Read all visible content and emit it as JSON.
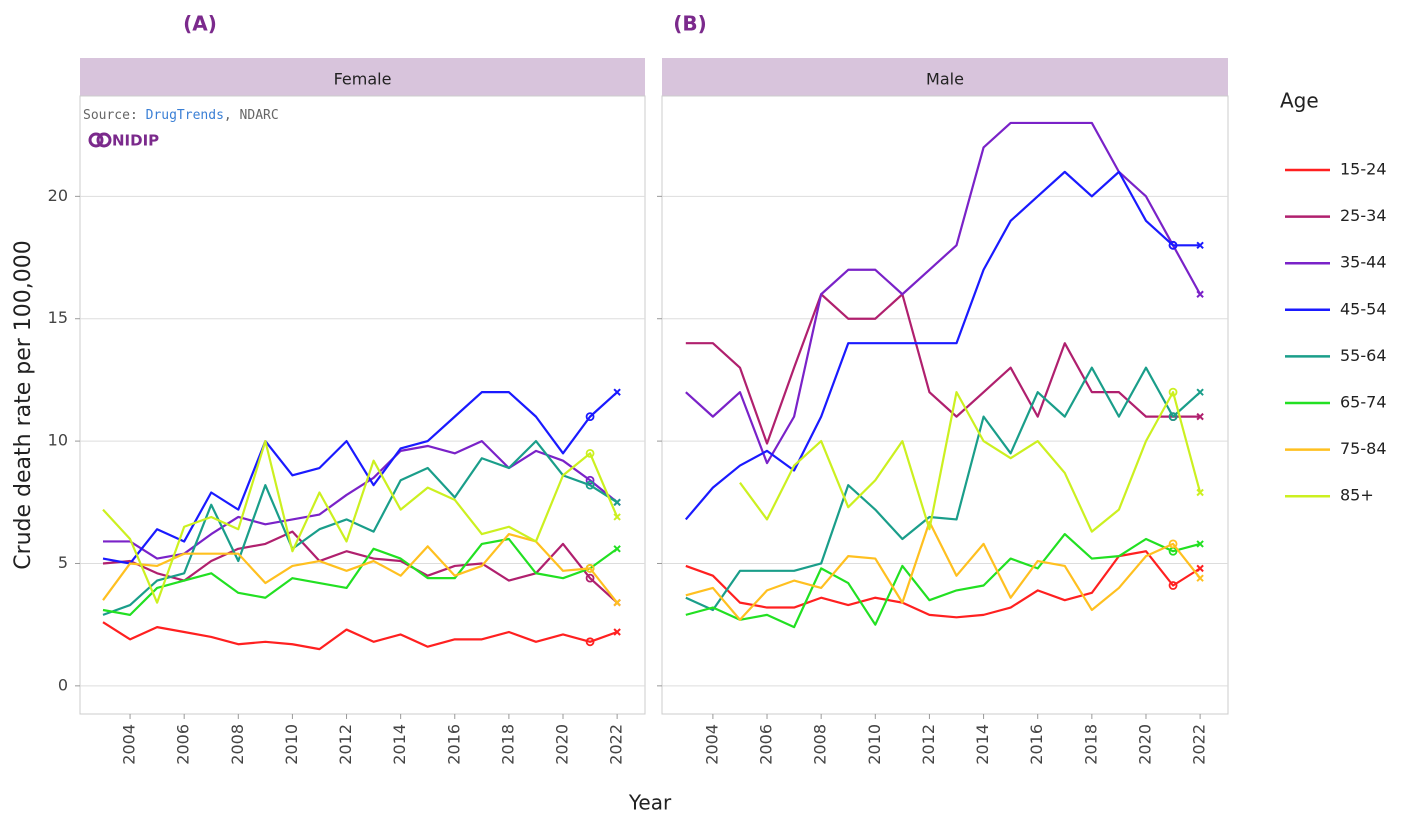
{
  "panel_labels": [
    "(A)",
    "(B)"
  ],
  "source": {
    "prefix": "Source:",
    "link": "DrugTrends",
    "suffix": ", NDARC"
  },
  "logo": "NIDIP",
  "legend_title": "Age",
  "xlabel": "Year",
  "ylabel": "Crude death rate per 100,000",
  "chart_data": [
    {
      "type": "line",
      "title": "Female",
      "x": [
        2003,
        2004,
        2005,
        2006,
        2007,
        2008,
        2009,
        2010,
        2011,
        2012,
        2013,
        2014,
        2015,
        2016,
        2017,
        2018,
        2019,
        2020,
        2021,
        2022
      ],
      "xlim": [
        2002.15,
        2023.03
      ],
      "xticks": [
        2004,
        2006,
        2008,
        2010,
        2012,
        2014,
        2016,
        2018,
        2020,
        2022
      ],
      "ylim": [
        -1.15,
        24.1
      ],
      "yticks": [
        0,
        5,
        10,
        15,
        20
      ],
      "grid": true,
      "series": [
        {
          "name": "15-24",
          "color": "#ff2020",
          "values": [
            2.6,
            1.9,
            2.4,
            2.2,
            2.0,
            1.7,
            1.8,
            1.7,
            1.5,
            2.3,
            1.8,
            2.1,
            1.6,
            1.9,
            1.9,
            2.2,
            1.8,
            2.1,
            1.8,
            2.2
          ]
        },
        {
          "name": "25-34",
          "color": "#b0206e",
          "values": [
            5.0,
            5.1,
            4.6,
            4.3,
            5.1,
            5.6,
            5.8,
            6.3,
            5.1,
            5.5,
            5.2,
            5.1,
            4.5,
            4.9,
            5.0,
            4.3,
            4.6,
            5.8,
            4.4,
            3.4
          ]
        },
        {
          "name": "35-44",
          "color": "#7a22c8",
          "values": [
            5.9,
            5.9,
            5.2,
            5.4,
            6.2,
            6.9,
            6.6,
            6.8,
            7.0,
            7.8,
            8.5,
            9.6,
            9.8,
            9.5,
            10.0,
            8.9,
            9.6,
            9.2,
            8.4,
            7.5
          ]
        },
        {
          "name": "45-54",
          "color": "#1a1aff",
          "values": [
            5.2,
            5.0,
            6.4,
            5.9,
            7.9,
            7.2,
            10.0,
            8.6,
            8.9,
            10.0,
            8.2,
            9.7,
            10.0,
            11.0,
            12.0,
            12.0,
            11.0,
            9.5,
            11.0,
            12.0
          ]
        },
        {
          "name": "55-64",
          "color": "#1a9e8a",
          "values": [
            2.9,
            3.3,
            4.3,
            4.6,
            7.4,
            5.1,
            8.2,
            5.6,
            6.4,
            6.8,
            6.3,
            8.4,
            8.9,
            7.7,
            9.3,
            8.9,
            10.0,
            8.6,
            8.2,
            7.5
          ]
        },
        {
          "name": "65-74",
          "color": "#22e022",
          "values": [
            3.1,
            2.9,
            4.0,
            4.3,
            4.6,
            3.8,
            3.6,
            4.4,
            4.2,
            4.0,
            5.6,
            5.2,
            4.4,
            4.4,
            5.8,
            6.0,
            4.6,
            4.4,
            4.8,
            5.6
          ]
        },
        {
          "name": "75-84",
          "color": "#ffc020",
          "values": [
            3.5,
            5.0,
            4.9,
            5.4,
            5.4,
            5.4,
            4.2,
            4.9,
            5.1,
            4.7,
            5.1,
            4.5,
            5.7,
            4.5,
            4.9,
            6.2,
            5.9,
            4.7,
            4.8,
            3.4
          ]
        },
        {
          "name": "85+",
          "color": "#ccf020",
          "values": [
            7.2,
            6.0,
            3.4,
            6.5,
            6.9,
            6.4,
            10.0,
            5.5,
            7.9,
            5.9,
            9.2,
            7.2,
            8.1,
            7.6,
            6.2,
            6.5,
            5.9,
            8.6,
            9.5,
            6.9
          ]
        }
      ]
    },
    {
      "type": "line",
      "title": "Male",
      "x": [
        2003,
        2004,
        2005,
        2006,
        2007,
        2008,
        2009,
        2010,
        2011,
        2012,
        2013,
        2014,
        2015,
        2016,
        2017,
        2018,
        2019,
        2020,
        2021,
        2022
      ],
      "xlim": [
        2002.12,
        2023.03
      ],
      "xticks": [
        2004,
        2006,
        2008,
        2010,
        2012,
        2014,
        2016,
        2018,
        2020,
        2022
      ],
      "ylim": [
        -1.15,
        24.1
      ],
      "yticks": [
        0,
        5,
        10,
        15,
        20
      ],
      "grid": true,
      "series": [
        {
          "name": "15-24",
          "color": "#ff2020",
          "values": [
            4.9,
            4.5,
            3.4,
            3.2,
            3.2,
            3.6,
            3.3,
            3.6,
            3.4,
            2.9,
            2.8,
            2.9,
            3.2,
            3.9,
            3.5,
            3.8,
            5.3,
            5.5,
            4.1,
            4.8
          ]
        },
        {
          "name": "25-34",
          "color": "#b0206e",
          "values": [
            14,
            14,
            13,
            9.9,
            13,
            16,
            15,
            15,
            16,
            12,
            11,
            12,
            13,
            11,
            14,
            12,
            12,
            11,
            11,
            11
          ]
        },
        {
          "name": "35-44",
          "color": "#7a22c8",
          "values": [
            12,
            11,
            12,
            9.1,
            11,
            16,
            17,
            17,
            16,
            17,
            18,
            22,
            23,
            23,
            23,
            23,
            21,
            20,
            18,
            16
          ]
        },
        {
          "name": "45-54",
          "color": "#1a1aff",
          "values": [
            6.8,
            8.1,
            9.0,
            9.6,
            8.8,
            11,
            14,
            14,
            14,
            14,
            14,
            17,
            19,
            20,
            21,
            20,
            21,
            19,
            18,
            18
          ]
        },
        {
          "name": "55-64",
          "color": "#1a9e8a",
          "values": [
            3.6,
            3.1,
            4.7,
            4.7,
            4.7,
            5.0,
            8.2,
            7.2,
            6.0,
            6.9,
            6.8,
            11,
            9.5,
            12,
            11,
            13,
            11,
            13,
            11,
            12
          ]
        },
        {
          "name": "65-74",
          "color": "#22e022",
          "values": [
            2.9,
            3.2,
            2.7,
            2.9,
            2.4,
            4.8,
            4.2,
            2.5,
            4.9,
            3.5,
            3.9,
            4.1,
            5.2,
            4.8,
            6.2,
            5.2,
            5.3,
            6.0,
            5.5,
            5.8
          ]
        },
        {
          "name": "75-84",
          "color": "#ffc020",
          "values": [
            3.7,
            4.0,
            2.7,
            3.9,
            4.3,
            4.0,
            5.3,
            5.2,
            3.4,
            6.7,
            4.5,
            5.8,
            3.6,
            5.1,
            4.9,
            3.1,
            4.0,
            5.3,
            5.8,
            4.4
          ]
        },
        {
          "name": "85+",
          "color": "#ccf020",
          "values": [
            null,
            null,
            8.3,
            6.8,
            9.0,
            10.0,
            7.3,
            8.4,
            10.0,
            6.4,
            12.0,
            10.0,
            9.3,
            10.0,
            8.7,
            6.3,
            7.2,
            10.0,
            12.0,
            7.9
          ]
        }
      ]
    }
  ]
}
